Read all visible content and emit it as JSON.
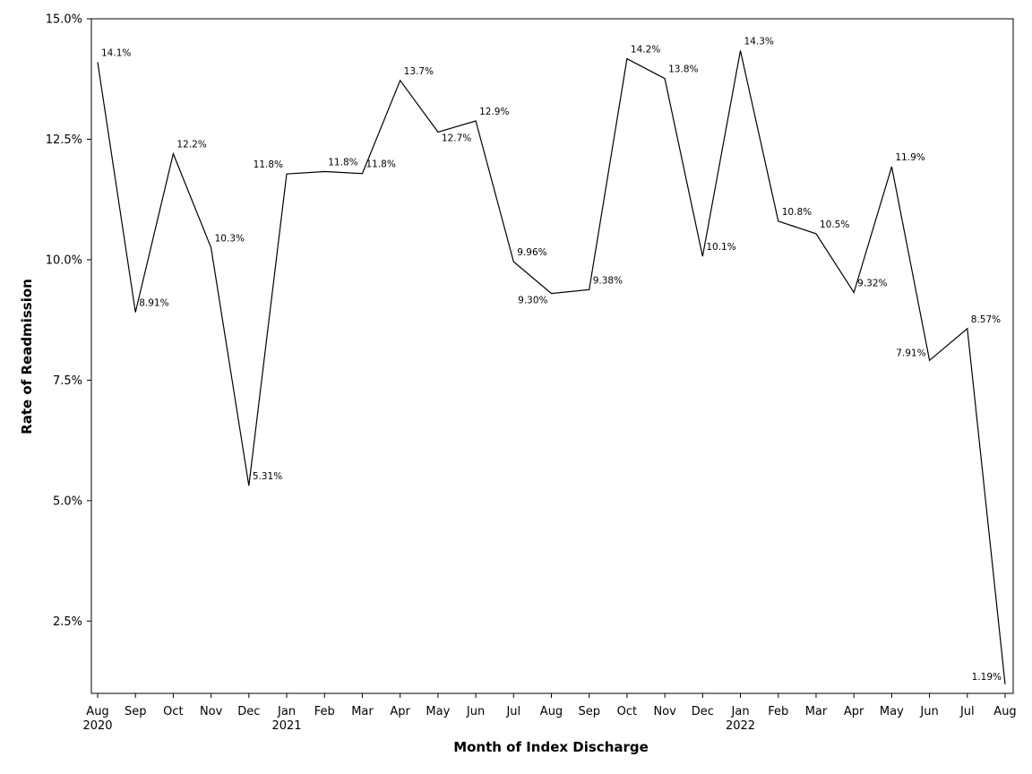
{
  "chart_data": {
    "type": "line",
    "xlabel": "Month of Index Discharge",
    "ylabel": "Rate of Readmission",
    "ylim": [
      1.0,
      15.0
    ],
    "yticks": [
      2.5,
      5.0,
      7.5,
      10.0,
      12.5,
      15.0
    ],
    "ytick_labels": [
      "2.5%",
      "5.0%",
      "7.5%",
      "10.0%",
      "12.5%",
      "15.0%"
    ],
    "grid": false,
    "categories": [
      "Aug",
      "Sep",
      "Oct",
      "Nov",
      "Dec",
      "Jan",
      "Feb",
      "Mar",
      "Apr",
      "May",
      "Jun",
      "Jul",
      "Aug",
      "Sep",
      "Oct",
      "Nov",
      "Dec",
      "Jan",
      "Feb",
      "Mar",
      "Apr",
      "May",
      "Jun",
      "Jul",
      "Aug"
    ],
    "category_years": [
      "2020",
      "",
      "",
      "",
      "",
      "2021",
      "",
      "",
      "",
      "",
      "",
      "",
      "",
      "",
      "",
      "",
      "",
      "2022",
      "",
      "",
      "",
      "",
      "",
      "",
      ""
    ],
    "series": [
      {
        "name": "Rate of Readmission",
        "values": [
          14.1,
          8.91,
          12.2,
          10.25,
          5.31,
          11.78,
          11.83,
          11.79,
          13.72,
          12.65,
          12.88,
          9.96,
          9.3,
          9.38,
          14.17,
          13.76,
          10.07,
          14.34,
          10.8,
          10.54,
          9.32,
          11.93,
          7.91,
          8.57,
          1.19
        ],
        "labels": [
          "14.1%",
          "8.91%",
          "12.2%",
          "10.3%",
          "5.31%",
          "11.8%",
          "11.8%",
          "11.8%",
          "13.7%",
          "12.7%",
          "12.9%",
          "9.96%",
          "9.30%",
          "9.38%",
          "14.2%",
          "13.8%",
          "10.1%",
          "14.3%",
          "10.8%",
          "10.5%",
          "9.32%",
          "11.9%",
          "7.91%",
          "8.57%",
          "1.19%"
        ],
        "color": "#000000"
      }
    ]
  }
}
